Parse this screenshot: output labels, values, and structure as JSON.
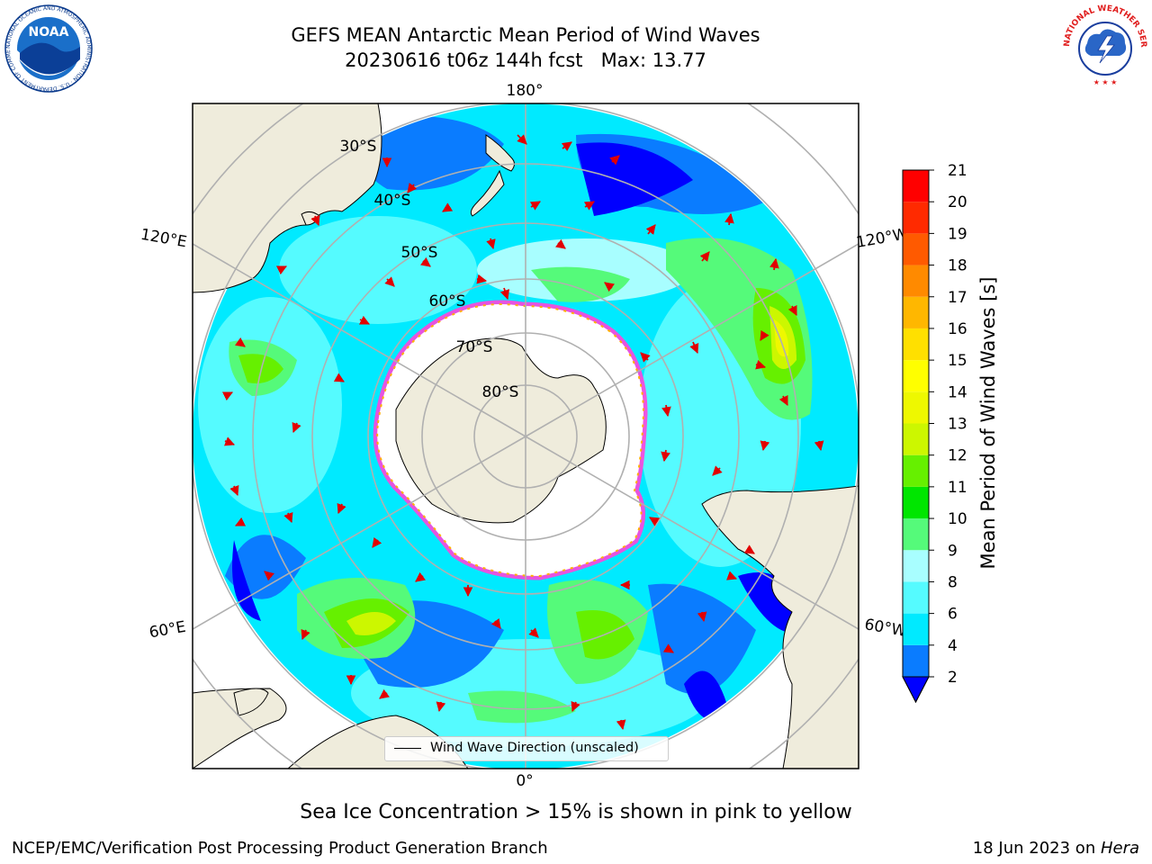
{
  "title": {
    "line1": "GEFS MEAN Antarctic Mean Period of Wind Waves",
    "line2": "20230616 t06z 144h fcst   Max: 13.77"
  },
  "map": {
    "projection": "south-polar-stereographic",
    "longitude_labels": [
      "180°",
      "120°E",
      "120°W",
      "60°E",
      "60°W",
      "0°"
    ],
    "latitude_labels": [
      "30°S",
      "40°S",
      "50°S",
      "60°S",
      "70°S",
      "80°S"
    ],
    "land_color": "#efecdc",
    "sea_ice_color": "#ffffff"
  },
  "legend": {
    "label": "Wind Wave Direction (unscaled)"
  },
  "colorbar": {
    "label": "Mean Period of Wind Waves [s]",
    "ticks": [
      "2",
      "4",
      "6",
      "8",
      "9",
      "10",
      "11",
      "12",
      "13",
      "14",
      "15",
      "16",
      "17",
      "18",
      "19",
      "20",
      "21"
    ],
    "colors": [
      "#0a7cff",
      "#00eaff",
      "#55fbff",
      "#a8feff",
      "#55fa7a",
      "#00e600",
      "#66f000",
      "#ccf700",
      "#eef800",
      "#ffff00",
      "#ffe000",
      "#ffb700",
      "#ff8a00",
      "#ff5a00",
      "#ff2a00",
      "#ff0000"
    ],
    "under_color": "#0000ff"
  },
  "caption": "Sea Ice Concentration > 15% is shown in pink to yellow",
  "footer": {
    "left": "NCEP/EMC/Verification Post Processing Product Generation Branch",
    "right_prefix": "18 Jun 2023 on ",
    "right_italic": "Hera"
  },
  "logos": {
    "noaa": {
      "text": "NOAA",
      "ring_text": "NATIONAL OCEANIC AND ATMOSPHERIC ADMINISTRATION · U.S. DEPARTMENT OF COMMERCE"
    },
    "nws": {
      "ring_text": "NATIONAL WEATHER SERVICE"
    }
  }
}
